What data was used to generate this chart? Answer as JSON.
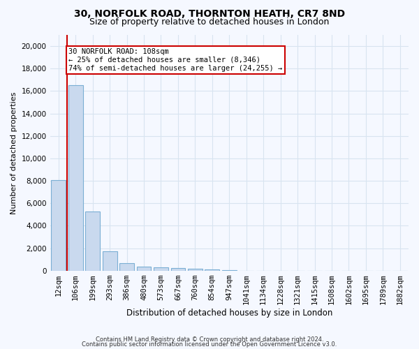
{
  "title1": "30, NORFOLK ROAD, THORNTON HEATH, CR7 8ND",
  "title2": "Size of property relative to detached houses in London",
  "xlabel": "Distribution of detached houses by size in London",
  "ylabel": "Number of detached properties",
  "categories": [
    "12sqm",
    "106sqm",
    "199sqm",
    "293sqm",
    "386sqm",
    "480sqm",
    "573sqm",
    "667sqm",
    "760sqm",
    "854sqm",
    "947sqm",
    "1041sqm",
    "1134sqm",
    "1228sqm",
    "1321sqm",
    "1415sqm",
    "1508sqm",
    "1602sqm",
    "1695sqm",
    "1789sqm",
    "1882sqm"
  ],
  "bar_heights": [
    8100,
    16500,
    5300,
    1750,
    650,
    350,
    270,
    220,
    190,
    100,
    50,
    0,
    0,
    0,
    0,
    0,
    0,
    0,
    0,
    0,
    0
  ],
  "bar_color": "#c9d9ee",
  "bar_edge_color": "#7bafd4",
  "bar_width": 0.85,
  "vline_color": "#cc0000",
  "vline_x": 0.5,
  "property_label": "30 NORFOLK ROAD: 108sqm",
  "annotation_line1": "← 25% of detached houses are smaller (8,346)",
  "annotation_line2": "74% of semi-detached houses are larger (24,255) →",
  "annotation_box_facecolor": "#ffffff",
  "annotation_box_edgecolor": "#cc0000",
  "ylim": [
    0,
    21000
  ],
  "yticks": [
    0,
    2000,
    4000,
    6000,
    8000,
    10000,
    12000,
    14000,
    16000,
    18000,
    20000
  ],
  "footer1": "Contains HM Land Registry data © Crown copyright and database right 2024.",
  "footer2": "Contains public sector information licensed under the Open Government Licence v3.0.",
  "bg_color": "#f5f8ff",
  "plot_bg_color": "#f5f8ff",
  "grid_color": "#d8e4f0",
  "title1_fontsize": 10,
  "title2_fontsize": 9,
  "xlabel_fontsize": 8.5,
  "ylabel_fontsize": 8,
  "tick_fontsize": 7.5,
  "footer_fontsize": 6,
  "annot_fontsize": 7.5
}
